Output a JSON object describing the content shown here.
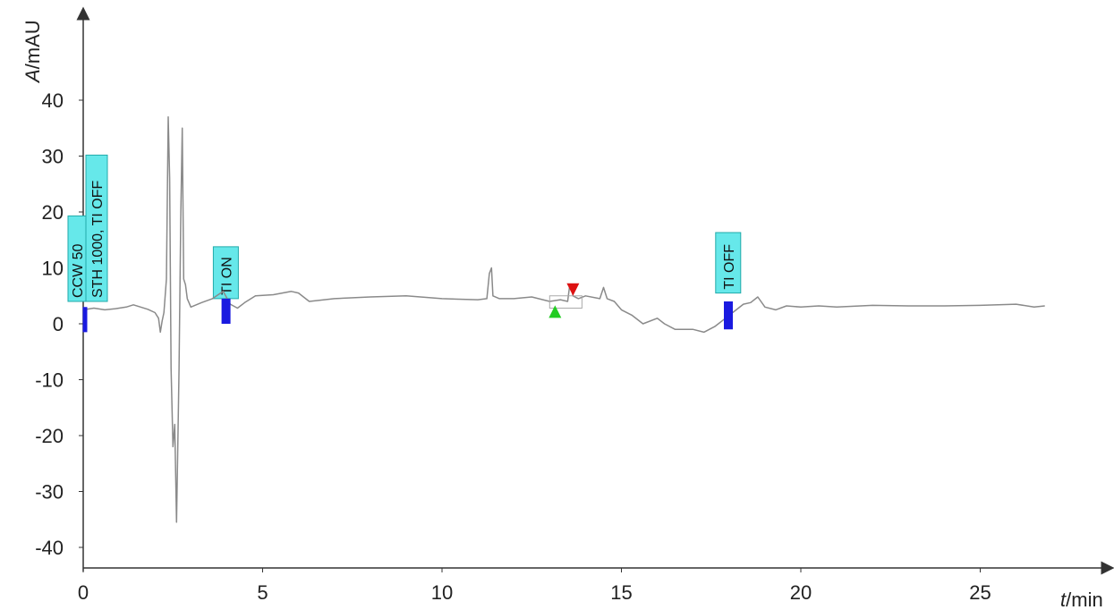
{
  "chart_data": {
    "type": "line",
    "xlabel": {
      "symbol": "t",
      "unit": "min"
    },
    "ylabel": {
      "symbol": "A",
      "unit": "mAU"
    },
    "xlim": [
      0,
      28
    ],
    "ylim": [
      -43,
      55
    ],
    "x_ticks": [
      {
        "value": 0,
        "label": "0"
      },
      {
        "value": 5,
        "label": "5"
      },
      {
        "value": 10,
        "label": "10"
      },
      {
        "value": 15,
        "label": "15"
      },
      {
        "value": 20,
        "label": "20"
      },
      {
        "value": 25,
        "label": "25"
      }
    ],
    "y_ticks": [
      {
        "value": 40,
        "label": "40"
      },
      {
        "value": 30,
        "label": "30"
      },
      {
        "value": 20,
        "label": "20"
      },
      {
        "value": 10,
        "label": "10"
      },
      {
        "value": 0,
        "label": "0"
      },
      {
        "value": -10,
        "label": "-10"
      },
      {
        "value": -20,
        "label": "-20"
      },
      {
        "value": -30,
        "label": "-30"
      },
      {
        "value": -40,
        "label": "-40"
      }
    ],
    "grid": false,
    "series": [
      {
        "color": "#8a8a8a",
        "points": [
          [
            0.0,
            2.5
          ],
          [
            0.3,
            2.8
          ],
          [
            0.6,
            2.5
          ],
          [
            0.9,
            2.7
          ],
          [
            1.2,
            3.0
          ],
          [
            1.4,
            3.4
          ],
          [
            1.6,
            3.0
          ],
          [
            1.8,
            2.6
          ],
          [
            2.0,
            2.0
          ],
          [
            2.1,
            1.0
          ],
          [
            2.15,
            -1.5
          ],
          [
            2.2,
            0.5
          ],
          [
            2.25,
            2.0
          ],
          [
            2.32,
            8.0
          ],
          [
            2.37,
            37.0
          ],
          [
            2.41,
            26.0
          ],
          [
            2.45,
            -8.0
          ],
          [
            2.5,
            -22.0
          ],
          [
            2.55,
            -18.0
          ],
          [
            2.6,
            -35.5
          ],
          [
            2.64,
            -20.0
          ],
          [
            2.67,
            -8.0
          ],
          [
            2.72,
            20.0
          ],
          [
            2.76,
            35.0
          ],
          [
            2.8,
            8.0
          ],
          [
            2.85,
            7.0
          ],
          [
            2.9,
            4.5
          ],
          [
            3.0,
            3.0
          ],
          [
            3.3,
            3.8
          ],
          [
            3.6,
            4.5
          ],
          [
            3.9,
            5.8
          ],
          [
            4.1,
            3.5
          ],
          [
            4.3,
            2.8
          ],
          [
            4.5,
            3.8
          ],
          [
            4.8,
            5.0
          ],
          [
            5.3,
            5.2
          ],
          [
            5.8,
            5.8
          ],
          [
            6.0,
            5.5
          ],
          [
            6.3,
            4.0
          ],
          [
            7.0,
            4.5
          ],
          [
            8.0,
            4.8
          ],
          [
            9.0,
            5.0
          ],
          [
            10.0,
            4.5
          ],
          [
            11.0,
            4.3
          ],
          [
            11.25,
            4.5
          ],
          [
            11.32,
            9.0
          ],
          [
            11.38,
            10.0
          ],
          [
            11.42,
            5.0
          ],
          [
            11.6,
            4.5
          ],
          [
            12.0,
            4.5
          ],
          [
            12.5,
            4.8
          ],
          [
            13.0,
            4.0
          ],
          [
            13.3,
            4.3
          ],
          [
            13.5,
            4.0
          ],
          [
            13.55,
            6.5
          ],
          [
            13.6,
            7.0
          ],
          [
            13.65,
            5.0
          ],
          [
            13.8,
            4.5
          ],
          [
            14.0,
            5.0
          ],
          [
            14.4,
            4.5
          ],
          [
            14.5,
            6.5
          ],
          [
            14.6,
            4.5
          ],
          [
            14.8,
            4.0
          ],
          [
            15.0,
            2.5
          ],
          [
            15.3,
            1.5
          ],
          [
            15.6,
            0.0
          ],
          [
            16.0,
            1.0
          ],
          [
            16.2,
            0.0
          ],
          [
            16.5,
            -1.0
          ],
          [
            17.0,
            -1.0
          ],
          [
            17.3,
            -1.5
          ],
          [
            17.6,
            -0.5
          ],
          [
            17.9,
            1.0
          ],
          [
            18.1,
            2.0
          ],
          [
            18.4,
            3.5
          ],
          [
            18.6,
            3.8
          ],
          [
            18.8,
            4.8
          ],
          [
            19.0,
            3.0
          ],
          [
            19.3,
            2.5
          ],
          [
            19.6,
            3.2
          ],
          [
            20.0,
            3.0
          ],
          [
            20.5,
            3.2
          ],
          [
            21.0,
            3.0
          ],
          [
            22.0,
            3.3
          ],
          [
            23.0,
            3.2
          ],
          [
            24.0,
            3.2
          ],
          [
            25.0,
            3.3
          ],
          [
            26.0,
            3.5
          ],
          [
            26.5,
            3.0
          ],
          [
            26.8,
            3.2
          ]
        ]
      }
    ],
    "annotations": [
      {
        "type": "label",
        "x": 0.0,
        "y_base": 4.0,
        "lines": [
          "CCW 50",
          "STH 1000, TI OFF"
        ],
        "fill": "#66e8ea"
      },
      {
        "type": "label",
        "x": 3.95,
        "y_base": 4.5,
        "lines": [
          "TI ON"
        ],
        "fill": "#66e8ea"
      },
      {
        "type": "label",
        "x": 17.95,
        "y_base": 5.5,
        "lines": [
          "TI OFF"
        ],
        "fill": "#66e8ea"
      },
      {
        "type": "event_bar",
        "x": 0.05,
        "y0": -1.5,
        "y1": 3.0,
        "color": "#1a1ae0"
      },
      {
        "type": "event_bar",
        "x": 3.98,
        "y0": 0.0,
        "y1": 4.5,
        "color": "#1a1ae0"
      },
      {
        "type": "event_bar",
        "x": 17.98,
        "y0": -1.0,
        "y1": 4.0,
        "color": "#1a1ae0"
      },
      {
        "type": "marker",
        "shape": "triangle-up",
        "x": 13.15,
        "y": 1.5,
        "color": "#22cc22"
      },
      {
        "type": "marker",
        "shape": "triangle-down",
        "x": 13.65,
        "y": 6.8,
        "color": "#dd1111"
      }
    ]
  }
}
